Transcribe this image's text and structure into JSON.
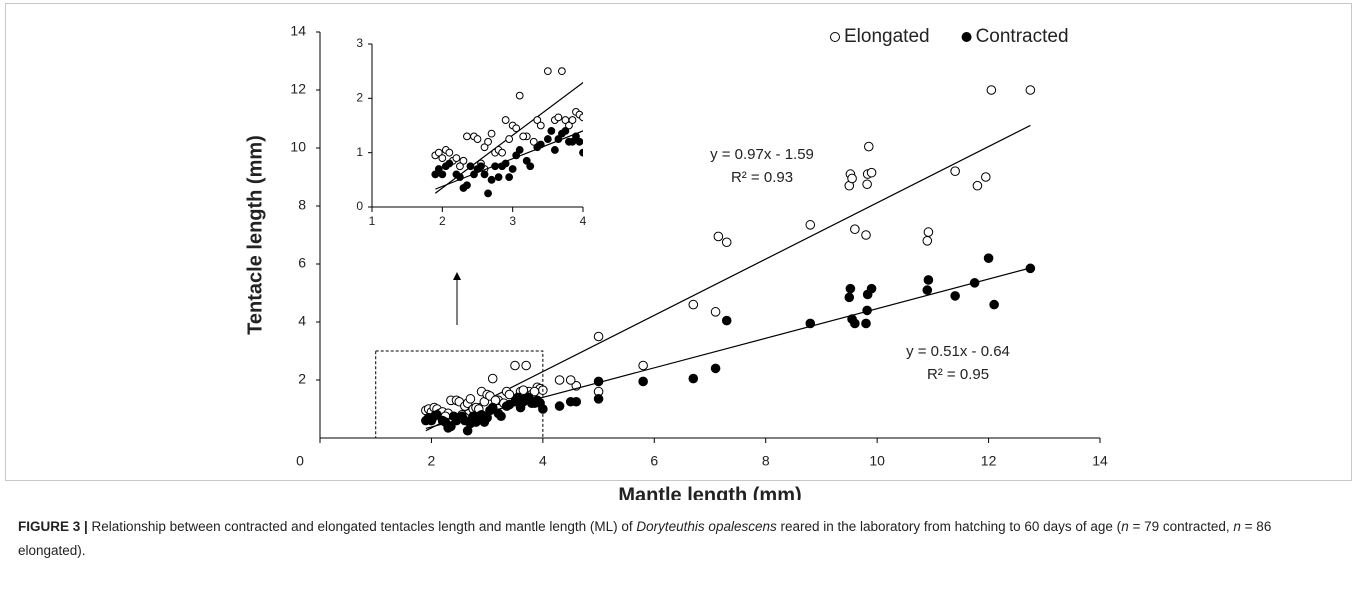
{
  "chart_data": [
    {
      "type": "scatter",
      "xlabel": "Mantle length (mm)",
      "ylabel": "Tentacle length (mm)",
      "xlim": [
        0,
        14
      ],
      "ylim": [
        0,
        14
      ],
      "xticks": [
        0,
        2,
        4,
        6,
        8,
        10,
        12,
        14
      ],
      "yticks": [
        2,
        4,
        6,
        8,
        10,
        12,
        14
      ],
      "legend": "upper right",
      "series": [
        {
          "name": "Elongated",
          "color": "#000000",
          "marker": "open",
          "x": [
            5.0,
            5.8,
            6.7,
            7.1,
            7.15,
            7.3,
            8.8,
            9.5,
            9.52,
            9.55,
            9.6,
            9.8,
            9.82,
            9.83,
            9.85,
            9.9,
            10.9,
            10.92,
            11.4,
            11.8,
            11.95,
            12.05,
            12.75,
            4.6,
            4.5,
            4.3,
            5.0,
            1.9,
            1.95,
            2.0,
            2.05,
            2.1,
            2.15,
            2.2,
            2.3,
            2.35,
            2.45,
            2.5,
            2.6,
            2.65,
            2.7,
            2.75,
            2.8,
            2.9,
            2.95,
            3.0,
            3.05,
            3.1,
            3.2,
            3.35,
            3.5,
            3.6,
            3.7,
            3.75,
            3.8,
            3.9,
            3.95,
            4.0,
            2.25,
            2.55,
            2.6,
            3.3,
            3.4,
            3.15,
            2.85,
            3.65,
            3.85
          ],
          "values": [
            3.5,
            2.5,
            4.6,
            4.35,
            6.95,
            6.75,
            7.35,
            8.7,
            9.1,
            8.95,
            7.2,
            7.0,
            8.75,
            9.1,
            10.05,
            9.15,
            6.8,
            7.1,
            9.2,
            8.7,
            9.0,
            12.0,
            12.0,
            1.8,
            2.0,
            2.0,
            1.6,
            0.95,
            1.0,
            0.9,
            1.05,
            1.0,
            0.85,
            0.9,
            0.85,
            1.3,
            1.3,
            1.25,
            1.1,
            1.2,
            1.35,
            1.0,
            1.05,
            1.6,
            1.25,
            1.5,
            1.45,
            2.05,
            1.3,
            1.6,
            2.5,
            1.6,
            2.5,
            1.6,
            1.5,
            1.75,
            1.7,
            1.65,
            0.75,
            0.8,
            0.7,
            1.2,
            1.5,
            1.3,
            1.0,
            1.65,
            1.6
          ],
          "trend": {
            "slope": 0.97,
            "intercept": -1.59,
            "equation": "y = 0.97x - 1.59",
            "r2": 0.93,
            "r2_label": "R² = 0.93"
          }
        },
        {
          "name": "Contracted",
          "color": "#000000",
          "marker": "filled",
          "x": [
            5.0,
            5.0,
            5.8,
            6.7,
            7.1,
            7.3,
            8.8,
            9.5,
            9.52,
            9.55,
            9.6,
            9.8,
            9.82,
            9.83,
            9.9,
            10.9,
            10.92,
            11.4,
            11.75,
            12.0,
            12.1,
            12.75,
            4.5,
            4.6,
            4.3,
            1.9,
            1.95,
            2.0,
            2.05,
            2.1,
            2.2,
            2.25,
            2.3,
            2.35,
            2.4,
            2.5,
            2.55,
            2.6,
            2.65,
            2.7,
            2.75,
            2.8,
            2.85,
            2.9,
            2.95,
            3.0,
            3.05,
            3.1,
            3.2,
            3.35,
            3.4,
            3.5,
            3.55,
            3.6,
            3.7,
            3.75,
            3.8,
            3.85,
            3.9,
            3.95,
            4.0,
            2.45,
            3.25,
            3.65
          ],
          "values": [
            1.95,
            1.35,
            1.95,
            2.05,
            2.4,
            4.05,
            3.95,
            4.85,
            5.15,
            4.1,
            3.95,
            3.95,
            4.4,
            4.95,
            5.15,
            5.1,
            5.45,
            4.9,
            5.35,
            6.2,
            4.6,
            5.85,
            1.25,
            1.25,
            1.1,
            0.6,
            0.7,
            0.6,
            0.75,
            0.8,
            0.6,
            0.55,
            0.35,
            0.4,
            0.75,
            0.7,
            0.75,
            0.6,
            0.25,
            0.5,
            0.75,
            0.55,
            0.75,
            0.8,
            0.55,
            0.7,
            0.95,
            1.05,
            0.85,
            1.1,
            1.15,
            1.25,
            1.4,
            1.05,
            1.35,
            1.4,
            1.2,
            1.2,
            1.3,
            1.2,
            1.0,
            0.6,
            0.75,
            1.25
          ],
          "trend": {
            "slope": 0.51,
            "intercept": -0.64,
            "equation": "y = 0.51x - 0.64",
            "r2": 0.95,
            "r2_label": "R² = 0.95"
          }
        }
      ]
    },
    {
      "type": "inset",
      "xlim": [
        1,
        4
      ],
      "ylim": [
        0,
        3
      ],
      "xticks": [
        1,
        2,
        3,
        4
      ],
      "yticks": [
        0,
        1,
        2,
        3
      ]
    }
  ],
  "caption": [
    {
      "text": "FIGURE 3 |",
      "style": "bold"
    },
    {
      "text": " Relationship between contracted and elongated tentacles length and mantle length (ML) of ",
      "style": "normal"
    },
    {
      "text": "Doryteuthis opalescens",
      "style": "italic"
    },
    {
      "text": " reared in the laboratory from hatching to 60 days of age (",
      "style": "normal"
    },
    {
      "text": "n",
      "style": "italic"
    },
    {
      "text": " = 79 contracted, ",
      "style": "normal"
    },
    {
      "text": "n",
      "style": "italic"
    },
    {
      "text": " = 86 elongated).",
      "style": "normal"
    }
  ]
}
